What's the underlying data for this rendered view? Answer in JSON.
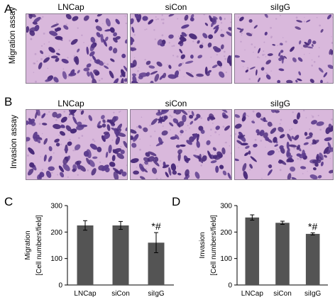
{
  "panels": {
    "a": {
      "letter": "A",
      "row_label": "Migration assay",
      "titles": [
        "LNCap",
        "siCon",
        "siIgG"
      ]
    },
    "b": {
      "letter": "B",
      "row_label": "Invasion assay",
      "titles": [
        "LNCap",
        "siCon",
        "siIgG"
      ]
    },
    "c": {
      "letter": "C"
    },
    "d": {
      "letter": "D"
    }
  },
  "colors": {
    "bar": "#545454",
    "stain_bg": "#d9b8dc",
    "stain_cell": "#4a2a7a"
  },
  "chart_data": [
    {
      "type": "bar",
      "title": "",
      "ylabel": "Migration\n[Cell numbers/field]",
      "xlabel": "",
      "categories": [
        "LNCap",
        "siCon",
        "siIgG"
      ],
      "values": [
        225,
        225,
        160
      ],
      "errors": [
        18,
        15,
        38
      ],
      "annotations": [
        "",
        "",
        "*#"
      ],
      "ylim": [
        0,
        300
      ],
      "yticks": [
        0,
        100,
        200,
        300
      ],
      "grid": false
    },
    {
      "type": "bar",
      "title": "",
      "ylabel": "Invasion\n[Cell numbers/field]",
      "xlabel": "",
      "categories": [
        "LNCap",
        "siCon",
        "siIgG"
      ],
      "values": [
        255,
        235,
        193
      ],
      "errors": [
        10,
        6,
        4
      ],
      "annotations": [
        "",
        "",
        "*#"
      ],
      "ylim": [
        0,
        300
      ],
      "yticks": [
        0,
        100,
        200,
        300
      ],
      "grid": false
    }
  ]
}
